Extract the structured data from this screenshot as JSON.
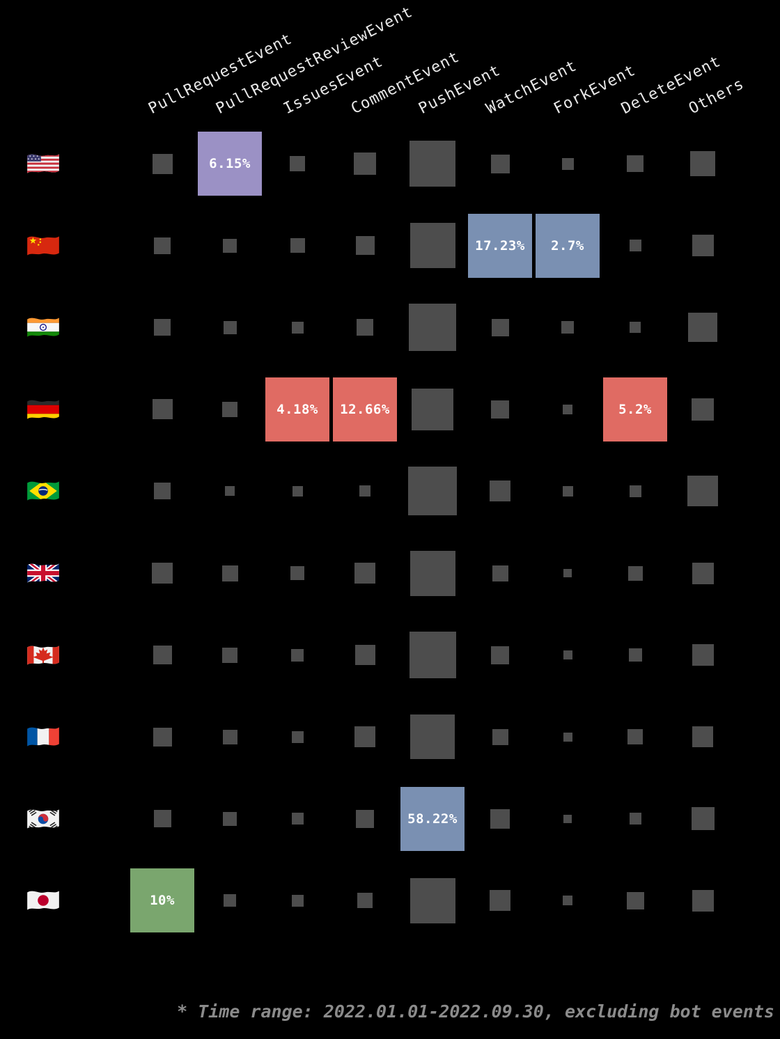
{
  "chart_data": {
    "type": "heatmap",
    "description": "GitHub event type distribution by country; square size encodes share, labeled colored cells show exact percentages",
    "columns": [
      "PullRequestEvent",
      "PullRequestReviewEvent",
      "IssuesEvent",
      "CommentEvent",
      "PushEvent",
      "WatchEvent",
      "ForkEvent",
      "DeleteEvent",
      "Others"
    ],
    "rows": [
      {
        "country": "United States",
        "flag_emoji": "🇺🇸",
        "cells": [
          {
            "size": 29
          },
          {
            "size": 92,
            "label": "6.15%",
            "color": "purple"
          },
          {
            "size": 22
          },
          {
            "size": 32
          },
          {
            "size": 66
          },
          {
            "size": 27
          },
          {
            "size": 17
          },
          {
            "size": 24
          },
          {
            "size": 36
          }
        ]
      },
      {
        "country": "China",
        "flag_emoji": "🇨🇳",
        "cells": [
          {
            "size": 24
          },
          {
            "size": 20
          },
          {
            "size": 21
          },
          {
            "size": 27
          },
          {
            "size": 65
          },
          {
            "size": 92,
            "label": "17.23%",
            "color": "blue"
          },
          {
            "size": 92,
            "label": "2.7%",
            "color": "blue"
          },
          {
            "size": 17
          },
          {
            "size": 31
          }
        ]
      },
      {
        "country": "India",
        "flag_emoji": "🇮🇳",
        "cells": [
          {
            "size": 24
          },
          {
            "size": 19
          },
          {
            "size": 17
          },
          {
            "size": 24
          },
          {
            "size": 68
          },
          {
            "size": 25
          },
          {
            "size": 18
          },
          {
            "size": 16
          },
          {
            "size": 42
          }
        ]
      },
      {
        "country": "Germany",
        "flag_emoji": "🇩🇪",
        "cells": [
          {
            "size": 29
          },
          {
            "size": 22
          },
          {
            "size": 92,
            "label": "4.18%",
            "color": "red"
          },
          {
            "size": 92,
            "label": "12.66%",
            "color": "red"
          },
          {
            "size": 60
          },
          {
            "size": 26
          },
          {
            "size": 14
          },
          {
            "size": 92,
            "label": "5.2%",
            "color": "red"
          },
          {
            "size": 32
          }
        ]
      },
      {
        "country": "Brazil",
        "flag_emoji": "🇧🇷",
        "cells": [
          {
            "size": 24
          },
          {
            "size": 14
          },
          {
            "size": 15
          },
          {
            "size": 16
          },
          {
            "size": 70
          },
          {
            "size": 30
          },
          {
            "size": 15
          },
          {
            "size": 17
          },
          {
            "size": 44
          }
        ]
      },
      {
        "country": "United Kingdom",
        "flag_emoji": "🇬🇧",
        "cells": [
          {
            "size": 30
          },
          {
            "size": 23
          },
          {
            "size": 20
          },
          {
            "size": 30
          },
          {
            "size": 65
          },
          {
            "size": 23
          },
          {
            "size": 12
          },
          {
            "size": 21
          },
          {
            "size": 31
          }
        ]
      },
      {
        "country": "Canada",
        "flag_emoji": "🇨🇦",
        "cells": [
          {
            "size": 27
          },
          {
            "size": 22
          },
          {
            "size": 18
          },
          {
            "size": 29
          },
          {
            "size": 67
          },
          {
            "size": 26
          },
          {
            "size": 13
          },
          {
            "size": 19
          },
          {
            "size": 31
          }
        ]
      },
      {
        "country": "France",
        "flag_emoji": "🇫🇷",
        "cells": [
          {
            "size": 27
          },
          {
            "size": 21
          },
          {
            "size": 17
          },
          {
            "size": 30
          },
          {
            "size": 64
          },
          {
            "size": 23
          },
          {
            "size": 13
          },
          {
            "size": 22
          },
          {
            "size": 30
          }
        ]
      },
      {
        "country": "South Korea",
        "flag_emoji": "🇰🇷",
        "cells": [
          {
            "size": 25
          },
          {
            "size": 20
          },
          {
            "size": 17
          },
          {
            "size": 26
          },
          {
            "size": 92,
            "label": "58.22%",
            "color": "blue"
          },
          {
            "size": 28
          },
          {
            "size": 12
          },
          {
            "size": 17
          },
          {
            "size": 33
          }
        ]
      },
      {
        "country": "Japan",
        "flag_emoji": "🇯🇵",
        "cells": [
          {
            "size": 92,
            "label": "10%",
            "color": "green"
          },
          {
            "size": 18
          },
          {
            "size": 17
          },
          {
            "size": 22
          },
          {
            "size": 65
          },
          {
            "size": 30
          },
          {
            "size": 14
          },
          {
            "size": 25
          },
          {
            "size": 31
          }
        ]
      }
    ],
    "note": "* Time range: 2022.01.01-2022.09.30, excluding bot events",
    "layout_hints": {
      "legend": "none",
      "grid": "off",
      "label_rotation_deg": -27
    },
    "colors": {
      "background": "#000000",
      "cell_base": "#4d4d4d",
      "header_text": "#e8e8e8",
      "note_text": "#8b8b8b",
      "cell_label_text": "#ffffff",
      "highlight": {
        "purple": "#9b91c5",
        "blue": "#7a90b2",
        "red": "#e06b63",
        "green": "#7aa66e"
      }
    }
  }
}
